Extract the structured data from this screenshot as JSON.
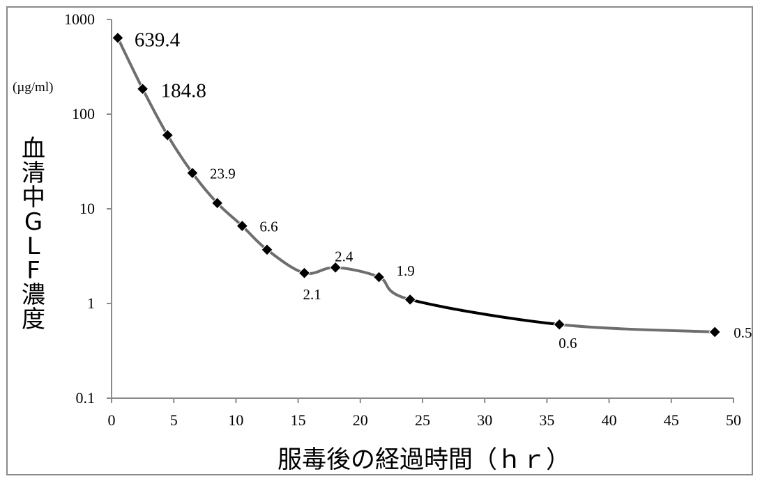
{
  "chart_data": {
    "type": "line",
    "ylabel": "血清中GLF濃度",
    "yunit": "(µg/ml)",
    "xlabel": "服毒後の経過時間（ｈｒ）",
    "xlim": [
      0,
      50
    ],
    "ylim": [
      0.1,
      1000
    ],
    "yscale": "log",
    "xticks": [
      "0",
      "5",
      "10",
      "15",
      "20",
      "25",
      "30",
      "35",
      "40",
      "45",
      "50"
    ],
    "yticks": [
      "0.1",
      "1",
      "10",
      "100",
      "1000"
    ],
    "grid": false,
    "series": [
      {
        "x": [
          0.5,
          2.5,
          4.5,
          6.5,
          8.5,
          10.5,
          12.5,
          15.5,
          18.0,
          21.5,
          24.0,
          36.0,
          48.5
        ],
        "y": [
          639.4,
          184.8,
          60,
          23.9,
          11.5,
          6.6,
          3.7,
          2.1,
          2.4,
          1.9,
          1.1,
          0.6,
          0.5
        ]
      }
    ],
    "annotations": [
      {
        "label": "639.4",
        "index": 0,
        "size": "big",
        "dx": 24,
        "dy": 12
      },
      {
        "label": "184.8",
        "index": 1,
        "size": "big",
        "dx": 26,
        "dy": 12
      },
      {
        "label": "23.9",
        "index": 3,
        "size": "small",
        "dx": 25,
        "dy": 8
      },
      {
        "label": "6.6",
        "index": 5,
        "size": "small",
        "dx": 25,
        "dy": 8
      },
      {
        "label": "2.1",
        "index": 7,
        "size": "small",
        "dx": -2,
        "dy": 38
      },
      {
        "label": "2.4",
        "index": 8,
        "size": "small",
        "dx": -1,
        "dy": -9
      },
      {
        "label": "1.9",
        "index": 9,
        "size": "small",
        "dx": 25,
        "dy": -2
      },
      {
        "label": "0.6",
        "index": 11,
        "size": "small",
        "dx": -1,
        "dy": 34
      },
      {
        "label": "0.5",
        "index": 12,
        "size": "small",
        "dx": 27,
        "dy": 8
      }
    ],
    "colors": {
      "line_main": "#6e6e6e",
      "line_tail": "#000000",
      "marker": "#000000",
      "axis": "#8a8a8a"
    }
  }
}
